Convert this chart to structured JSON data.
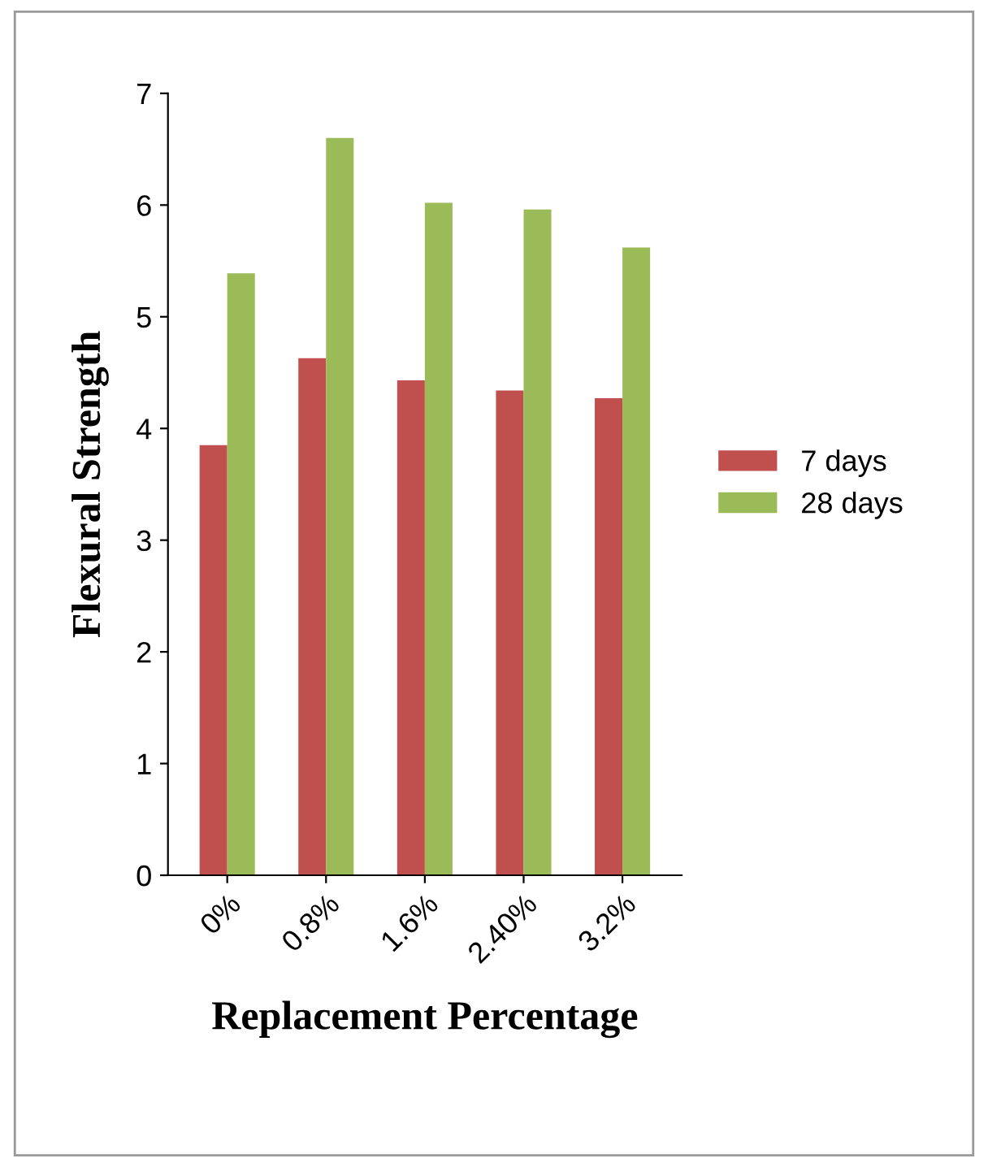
{
  "chart_data": {
    "type": "bar",
    "xlabel": "Replacement Percentage",
    "ylabel": "Flexural Strength",
    "categories": [
      "0%",
      "0.8%",
      "1.6%",
      "2.40%",
      "3.2%"
    ],
    "series": [
      {
        "name": "7 days",
        "color": "#c0504d",
        "values": [
          3.85,
          4.63,
          4.43,
          4.34,
          4.27
        ]
      },
      {
        "name": "28 days",
        "color": "#9bbb59",
        "values": [
          5.39,
          6.6,
          6.02,
          5.96,
          5.62
        ]
      }
    ],
    "ylim": [
      0,
      7
    ],
    "yticks": [
      0,
      1,
      2,
      3,
      4,
      5,
      6,
      7
    ],
    "grid": false,
    "legend": "right"
  }
}
